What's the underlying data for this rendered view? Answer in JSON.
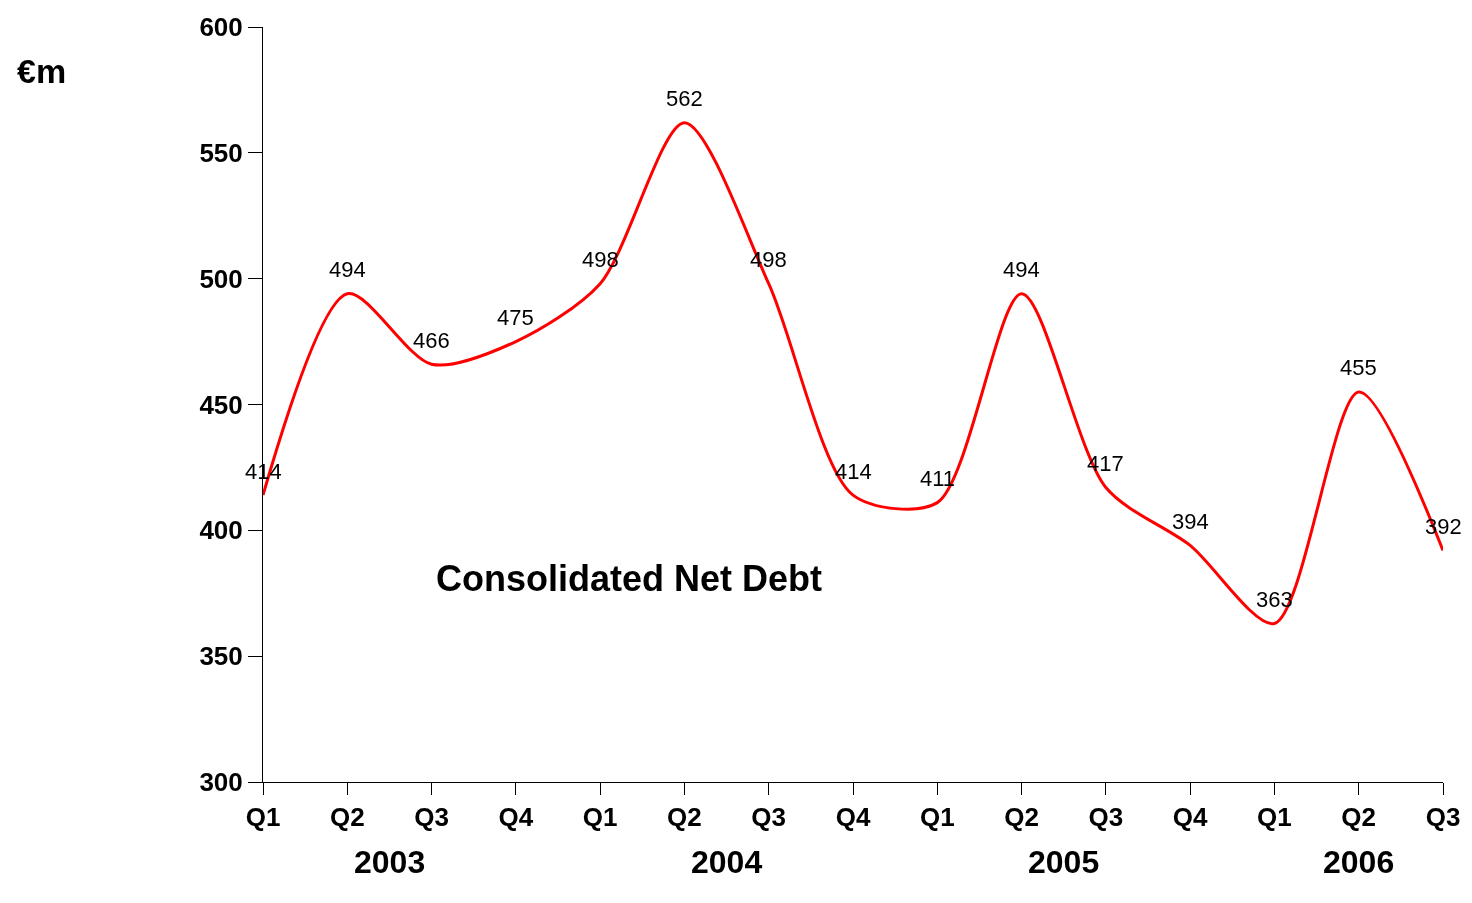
{
  "chart_data": {
    "type": "line",
    "title": "Consolidated Net Debt",
    "ylabel": "€m",
    "categories": [
      "Q1",
      "Q2",
      "Q3",
      "Q4",
      "Q1",
      "Q2",
      "Q3",
      "Q4",
      "Q1",
      "Q2",
      "Q3",
      "Q4",
      "Q1",
      "Q2",
      "Q3"
    ],
    "series": [
      {
        "color": "#ff0000",
        "values": [
          414,
          494,
          466,
          475,
          498,
          562,
          498,
          414,
          411,
          494,
          417,
          394,
          363,
          455,
          392
        ]
      }
    ],
    "ylim": [
      300,
      600
    ],
    "yticks": [
      300,
      350,
      400,
      450,
      500,
      550,
      600
    ],
    "annotations": [
      "2003",
      "2004",
      "2005",
      "2006"
    ],
    "data_labels": true,
    "marker": "none",
    "line_style": "solid"
  }
}
